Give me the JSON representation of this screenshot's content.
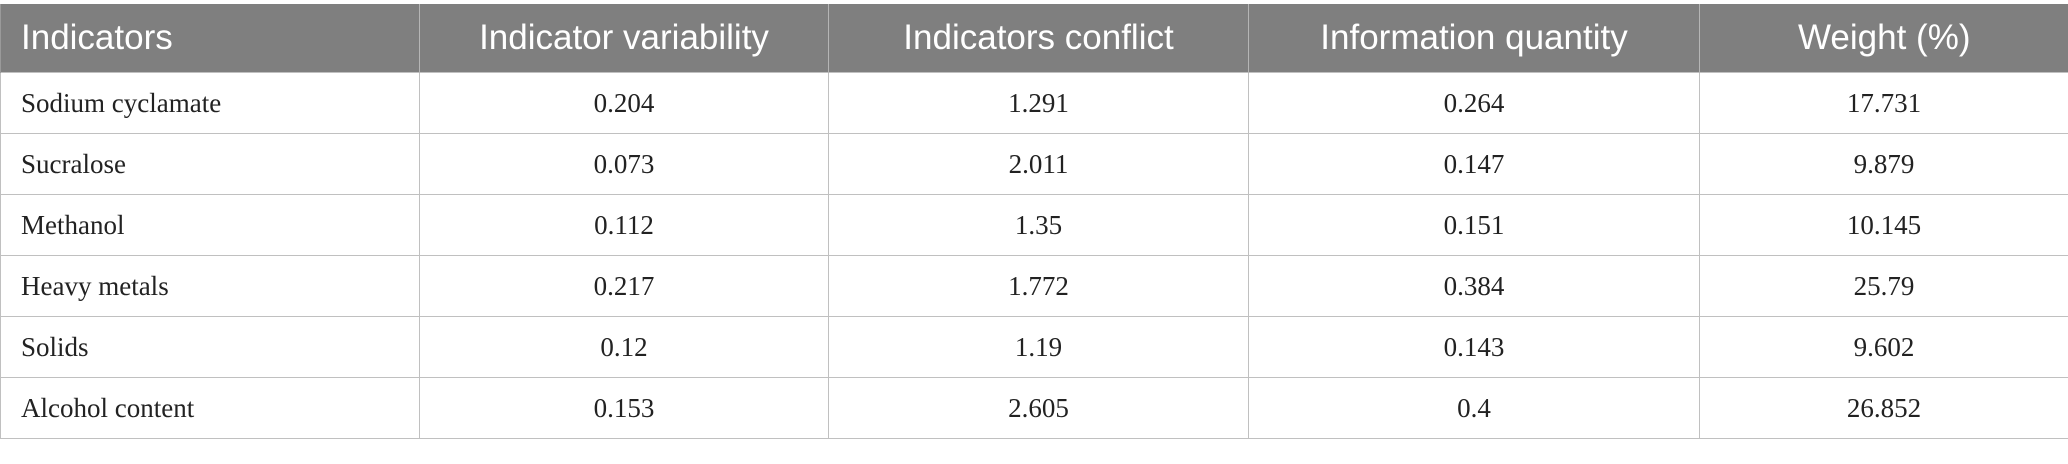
{
  "table": {
    "header": [
      "Indicators",
      "Indicator variability",
      "Indicators conflict",
      "Information quantity",
      "Weight (%)"
    ],
    "rows": [
      [
        "Sodium cyclamate",
        0.204,
        1.291,
        0.264,
        17.731
      ],
      [
        "Sucralose",
        0.073,
        2.011,
        0.147,
        9.879
      ],
      [
        "Methanol",
        0.112,
        1.35,
        0.151,
        10.145
      ],
      [
        "Heavy metals",
        0.217,
        1.772,
        0.384,
        25.79
      ],
      [
        "Solids",
        0.12,
        1.19,
        0.143,
        9.602
      ],
      [
        "Alcohol content",
        0.153,
        2.605,
        0.4,
        26.852
      ]
    ]
  }
}
